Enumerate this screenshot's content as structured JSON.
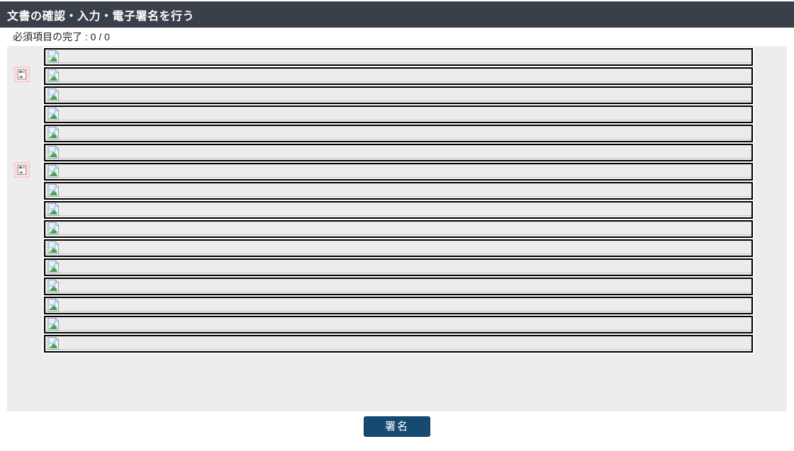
{
  "title_bar": {
    "title": "文書の確認・入力・電子署名を行う",
    "bg_color": "#394049",
    "text_color": "#ffffff"
  },
  "status_bar": {
    "text": "必須項目の完了 : 0 / 0",
    "completed": "0",
    "total": "0"
  },
  "document_viewer": {
    "panel_bg": "#ededed",
    "page_rows": {
      "count": 16,
      "row_bg": "#ececec",
      "border_color": "#000000",
      "icon": "broken-image-icon"
    },
    "signature_markers": {
      "bg_color": "#f5caca",
      "icon": "broken-image-icon",
      "items": [
        {
          "row": 2
        },
        {
          "row": 7
        }
      ]
    }
  },
  "footer": {
    "sign_button": {
      "label": "署名",
      "bg_color": "#154a73",
      "text_color": "#ffffff"
    }
  }
}
